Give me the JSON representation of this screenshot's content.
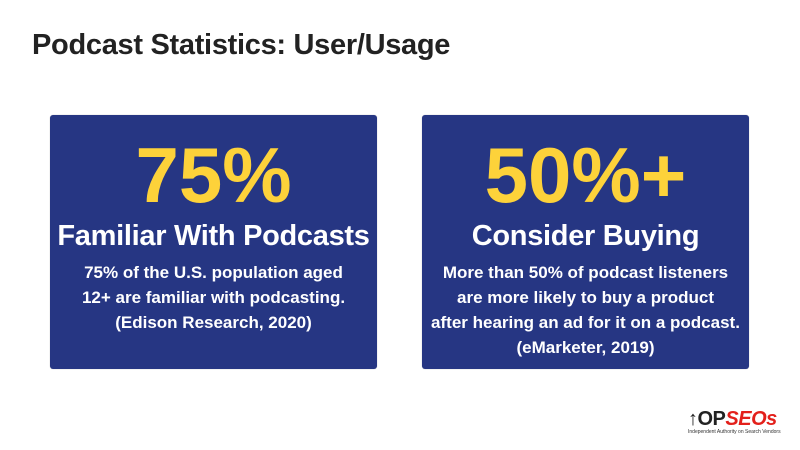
{
  "title": "Podcast Statistics: User/Usage",
  "cards": [
    {
      "stat": "75%",
      "heading": "Familiar With Podcasts",
      "body": [
        "75% of the U.S. population aged",
        "12+ are familiar with podcasting.",
        "(Edison Research, 2020)"
      ]
    },
    {
      "stat": "50%+",
      "heading": "Consider Buying",
      "body": [
        "More than 50% of podcast listeners",
        "are more likely to buy a product",
        "after hearing an ad for it on a podcast.",
        "(eMarketer, 2019)"
      ]
    }
  ],
  "logo": {
    "text_top": "↑OP",
    "text_seo": "SEOs",
    "tagline": "Independent Authority on Search Vendors"
  },
  "colors": {
    "card_bg": "#263683",
    "stat": "#fdd23a",
    "logo_accent": "#e3201b"
  }
}
